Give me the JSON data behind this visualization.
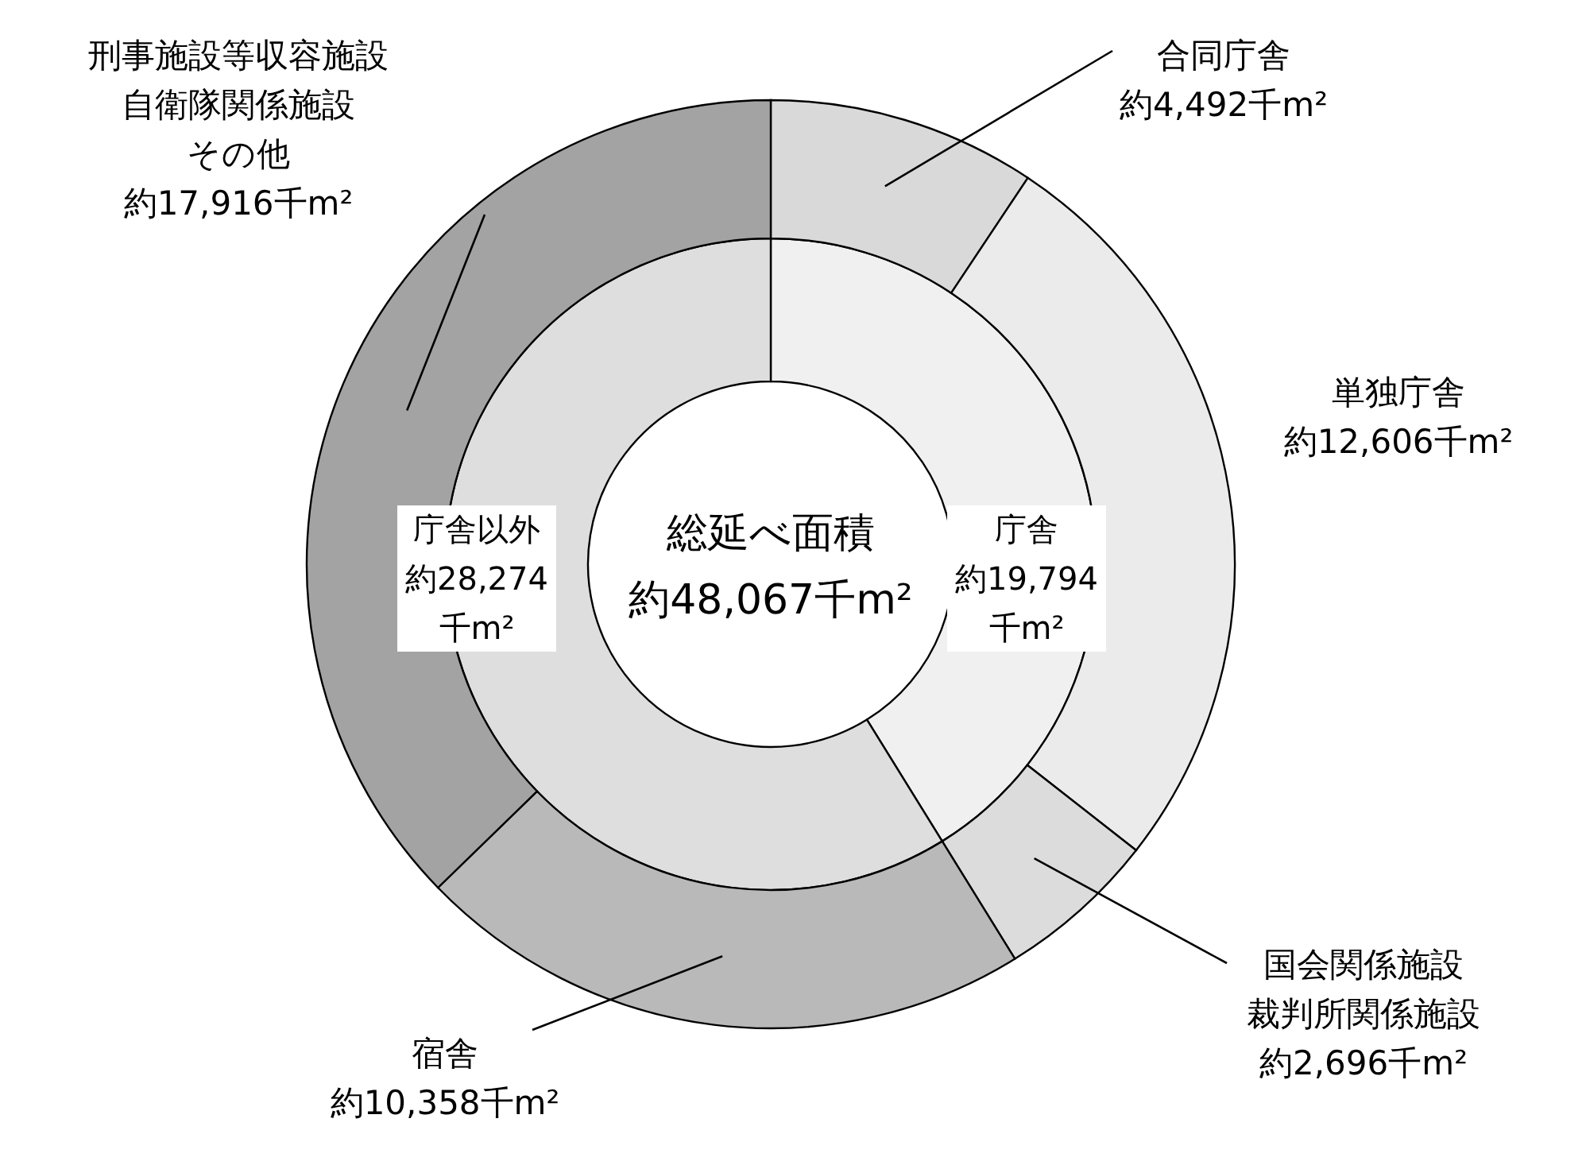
{
  "chart_data": [
    {
      "type": "donut",
      "title": "総延べ面積約48,067千m²",
      "categories": [
        "庁舎",
        "庁舎以外"
      ],
      "values": [
        19794,
        28274
      ],
      "colors": [
        "#f0f0f0",
        "#dedede"
      ],
      "value_labels": [
        "約19,794千m²",
        "約28,274千m²"
      ]
    },
    {
      "type": "donut",
      "categories": [
        "合同庁舎",
        "単独庁舎",
        "国会関係施設裁判所関係施設",
        "宿舎",
        "刑事施設等収容施設自衛隊関係施設その他"
      ],
      "values": [
        4492,
        12606,
        2696,
        10358,
        17916
      ],
      "colors": [
        "#d9d9d9",
        "#ebebeb",
        "#dcdcdc",
        "#b9b9b9",
        "#a3a3a3"
      ],
      "value_labels": [
        "約4,492千m²",
        "約12,606千m²",
        "約2,696千m²",
        "約10,358千m²",
        "約17,916千m²"
      ]
    }
  ]
}
